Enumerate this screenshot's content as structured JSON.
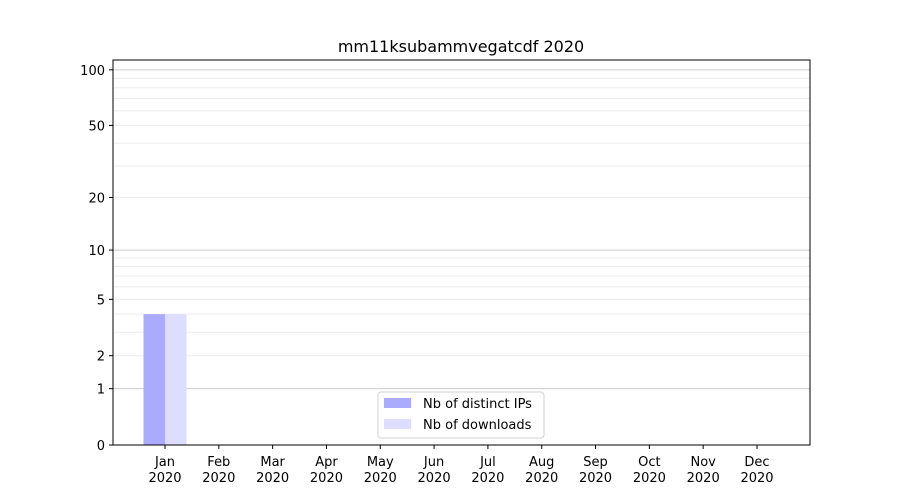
{
  "chart_data": {
    "type": "bar",
    "title": "mm11ksubammvegatcdf 2020",
    "xlabel": "",
    "ylabel": "",
    "y_scale": "log10(1+y)",
    "ylim": [
      0,
      113
    ],
    "y_ticks": [
      0,
      1,
      2,
      5,
      10,
      20,
      50,
      100
    ],
    "y_tick_labels": [
      "0",
      "1",
      "2",
      "5",
      "10",
      "20",
      "50",
      "100"
    ],
    "grid": true,
    "categories": [
      "Jan\n2020",
      "Feb\n2020",
      "Mar\n2020",
      "Apr\n2020",
      "May\n2020",
      "Jun\n2020",
      "Jul\n2020",
      "Aug\n2020",
      "Sep\n2020",
      "Oct\n2020",
      "Nov\n2020",
      "Dec\n2020"
    ],
    "series": [
      {
        "name": "Nb of distinct IPs",
        "color": "#aaaaff",
        "values": [
          4,
          0,
          0,
          0,
          0,
          0,
          0,
          0,
          0,
          0,
          0,
          0
        ]
      },
      {
        "name": "Nb of downloads",
        "color": "#ddddff",
        "values": [
          4,
          0,
          0,
          0,
          0,
          0,
          0,
          0,
          0,
          0,
          0,
          0
        ]
      }
    ],
    "legend_position": "bottom-center"
  }
}
